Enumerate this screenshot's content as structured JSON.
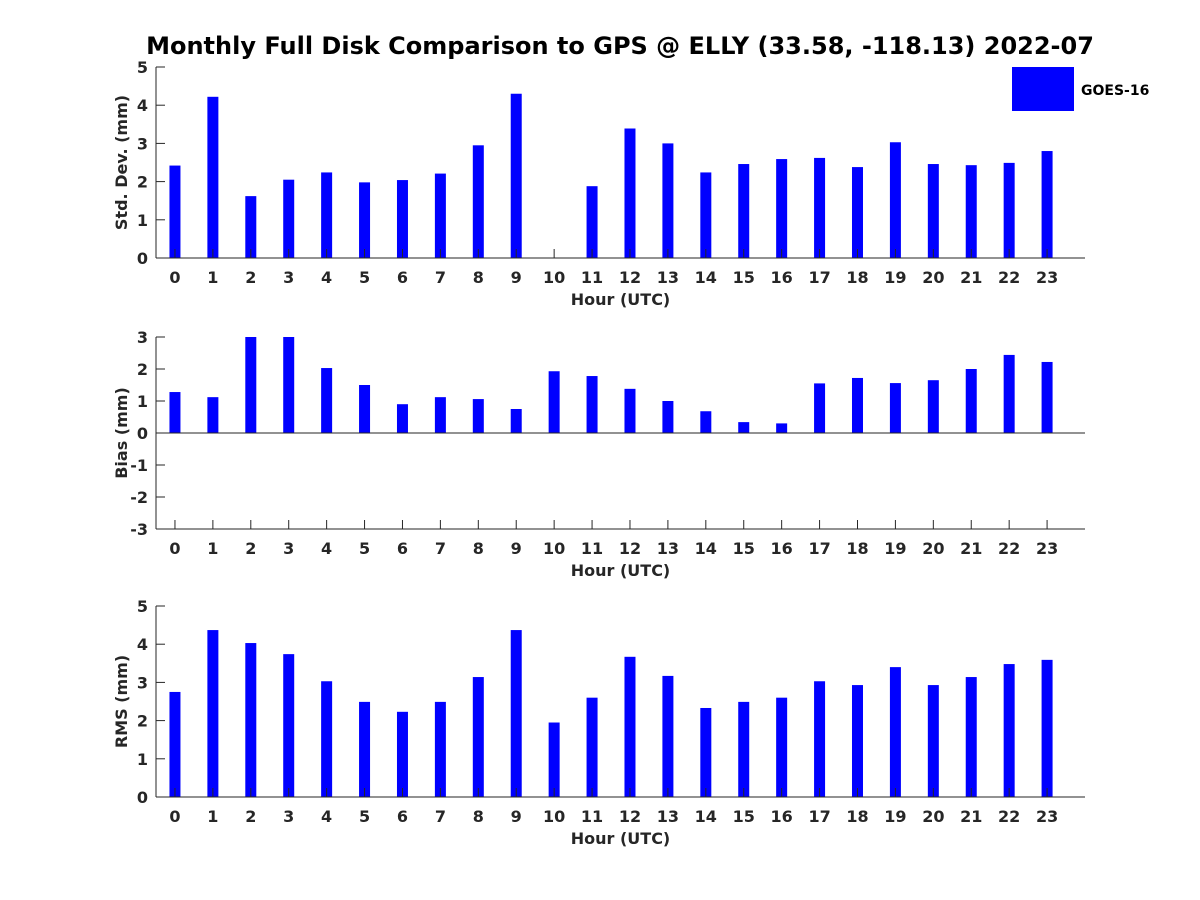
{
  "figure_title": "Monthly Full Disk Comparison to GPS @ ELLY (33.58, -118.13) 2022-07",
  "legend": {
    "entries": [
      {
        "label": "GOES-16",
        "color": "#0000ff"
      }
    ],
    "placement": "top-right"
  },
  "chart_data": [
    {
      "type": "bar",
      "name": "std-dev",
      "title": "",
      "xlabel": "Hour (UTC)",
      "ylabel": "Std. Dev. (mm)",
      "ylim": [
        0,
        5
      ],
      "yticks": [
        0,
        1,
        2,
        3,
        4,
        5
      ],
      "categories": [
        "0",
        "1",
        "2",
        "3",
        "4",
        "5",
        "6",
        "7",
        "8",
        "9",
        "10",
        "11",
        "12",
        "13",
        "14",
        "15",
        "16",
        "17",
        "18",
        "19",
        "20",
        "21",
        "22",
        "23"
      ],
      "series": [
        {
          "name": "GOES-16",
          "color": "#0000ff",
          "values": [
            2.42,
            4.22,
            1.62,
            2.05,
            2.24,
            1.98,
            2.04,
            2.21,
            2.95,
            4.3,
            0,
            1.88,
            3.39,
            3.0,
            2.24,
            2.46,
            2.59,
            2.62,
            2.38,
            3.03,
            2.46,
            2.43,
            2.49,
            2.8
          ]
        }
      ]
    },
    {
      "type": "bar",
      "name": "bias",
      "title": "",
      "xlabel": "Hour (UTC)",
      "ylabel": "Bias (mm)",
      "ylim": [
        -3,
        3
      ],
      "yticks": [
        -3,
        -2,
        -1,
        0,
        1,
        2,
        3
      ],
      "categories": [
        "0",
        "1",
        "2",
        "3",
        "4",
        "5",
        "6",
        "7",
        "8",
        "9",
        "10",
        "11",
        "12",
        "13",
        "14",
        "15",
        "16",
        "17",
        "18",
        "19",
        "20",
        "21",
        "22",
        "23"
      ],
      "series": [
        {
          "name": "GOES-16",
          "color": "#0000ff",
          "values": [
            1.28,
            1.12,
            3.0,
            3.0,
            2.03,
            1.5,
            0.9,
            1.12,
            1.06,
            0.75,
            1.93,
            1.78,
            1.38,
            1.0,
            0.68,
            0.34,
            0.3,
            1.55,
            1.72,
            1.56,
            1.65,
            2.0,
            2.44,
            2.22
          ]
        }
      ]
    },
    {
      "type": "bar",
      "name": "rms",
      "title": "",
      "xlabel": "Hour (UTC)",
      "ylabel": "RMS (mm)",
      "ylim": [
        0,
        5
      ],
      "yticks": [
        0,
        1,
        2,
        3,
        4,
        5
      ],
      "categories": [
        "0",
        "1",
        "2",
        "3",
        "4",
        "5",
        "6",
        "7",
        "8",
        "9",
        "10",
        "11",
        "12",
        "13",
        "14",
        "15",
        "16",
        "17",
        "18",
        "19",
        "20",
        "21",
        "22",
        "23"
      ],
      "series": [
        {
          "name": "GOES-16",
          "color": "#0000ff",
          "values": [
            2.75,
            4.37,
            4.03,
            3.74,
            3.03,
            2.49,
            2.23,
            2.49,
            3.14,
            4.37,
            1.95,
            2.6,
            3.67,
            3.17,
            2.33,
            2.49,
            2.6,
            3.03,
            2.93,
            3.4,
            2.93,
            3.14,
            3.48,
            3.59
          ]
        }
      ]
    }
  ]
}
